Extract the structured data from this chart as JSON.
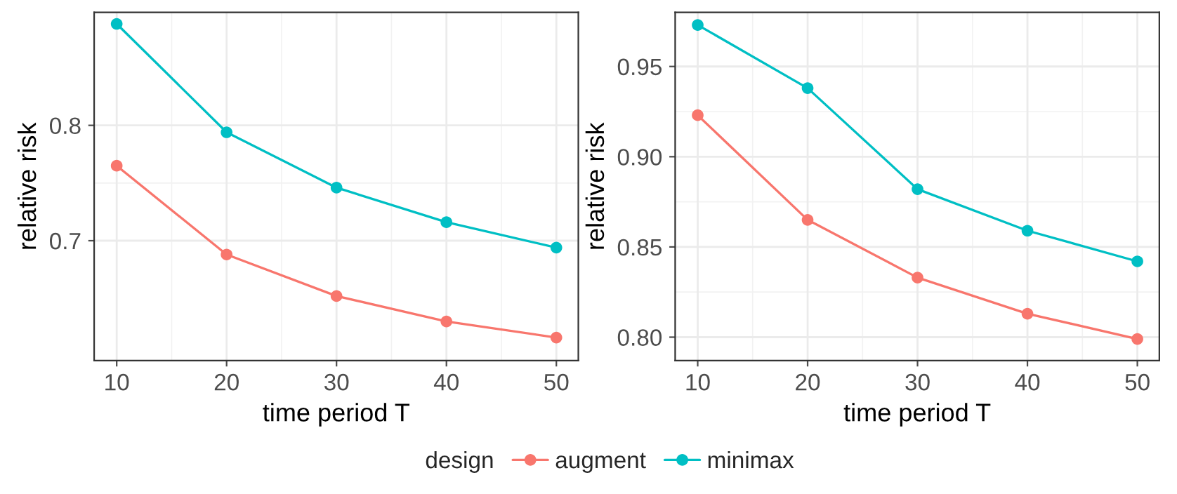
{
  "chart_data": [
    {
      "type": "line",
      "xlabel": "time period T",
      "ylabel": "relative risk",
      "x": [
        10,
        20,
        30,
        40,
        50
      ],
      "xlim": [
        7.95,
        52
      ],
      "xticks": [
        10,
        20,
        30,
        40,
        50
      ],
      "ylim": [
        0.596,
        0.898
      ],
      "yticks": [
        0.7,
        0.8
      ],
      "grid": true,
      "marker": "circle",
      "legend": "bottom",
      "legend_title": "design",
      "series": [
        {
          "name": "augment",
          "color": "#f8766d",
          "values": [
            0.765,
            0.688,
            0.652,
            0.63,
            0.616
          ]
        },
        {
          "name": "minimax",
          "color": "#00bfc4",
          "values": [
            0.888,
            0.794,
            0.746,
            0.716,
            0.694
          ]
        }
      ]
    },
    {
      "type": "line",
      "xlabel": "time period T",
      "ylabel": "relative risk",
      "x": [
        10,
        20,
        30,
        40,
        50
      ],
      "xlim": [
        7.95,
        52
      ],
      "xticks": [
        10,
        20,
        30,
        40,
        50
      ],
      "ylim": [
        0.787,
        0.98
      ],
      "yticks": [
        {
          "value": 0.8,
          "label": "0.80"
        },
        {
          "value": 0.85,
          "label": "0.85"
        },
        {
          "value": 0.9,
          "label": "0.90"
        },
        {
          "value": 0.95,
          "label": "0.95"
        }
      ],
      "grid": true,
      "marker": "circle",
      "series": [
        {
          "color": "#f8766d",
          "values": [
            0.923,
            0.865,
            0.833,
            0.813,
            0.799
          ]
        },
        {
          "color": "#00bfc4",
          "values": [
            0.973,
            0.938,
            0.882,
            0.859,
            0.842
          ]
        }
      ]
    }
  ]
}
